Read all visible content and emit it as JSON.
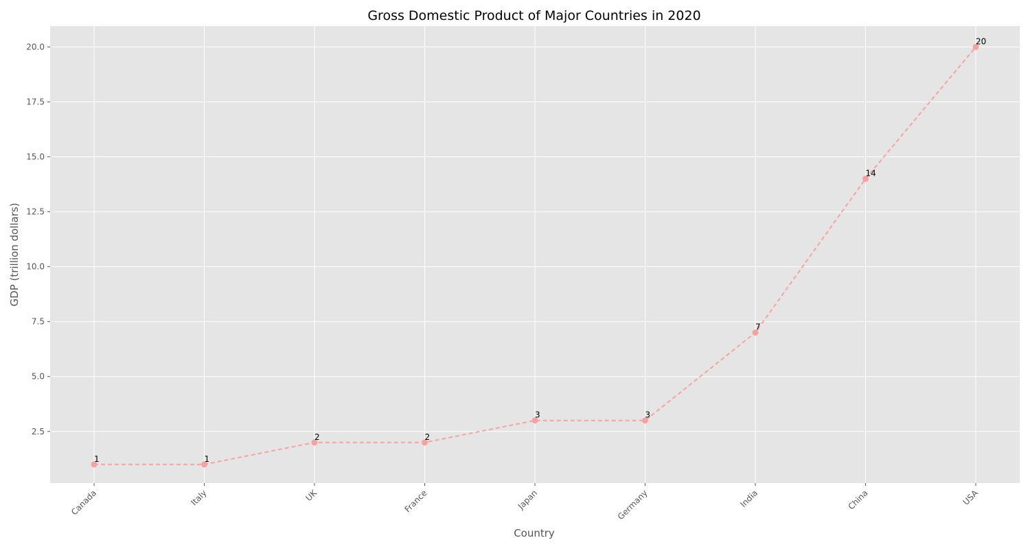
{
  "chart_data": {
    "type": "line",
    "title": "Gross Domestic Product of Major Countries in 2020",
    "xlabel": "Country",
    "ylabel": "GDP (trillion dollars)",
    "categories": [
      "Canada",
      "Italy",
      "UK",
      "France",
      "Japan",
      "Germany",
      "India",
      "China",
      "USA"
    ],
    "series": [
      {
        "values": [
          1,
          1,
          2,
          2,
          3,
          3,
          7,
          14,
          20
        ],
        "data_labels": [
          "1",
          "1",
          "2",
          "2",
          "3",
          "3",
          "7",
          "14",
          "20"
        ],
        "line_style": "dashed",
        "marker": "circle",
        "color": "#F8A1A1"
      }
    ],
    "ylim": [
      0.15,
      20.95
    ],
    "yticks": [
      2.5,
      5.0,
      7.5,
      10.0,
      12.5,
      15.0,
      17.5,
      20.0
    ],
    "ytick_labels": [
      "2.5",
      "5.0",
      "7.5",
      "10.0",
      "12.5",
      "15.0",
      "17.5",
      "20.0"
    ],
    "grid": true,
    "legend": "none",
    "colors": {
      "plot_background": "#E5E5E5",
      "grid": "#FFFFFF",
      "tick_text": "#555555",
      "title_text": "#000000"
    }
  }
}
